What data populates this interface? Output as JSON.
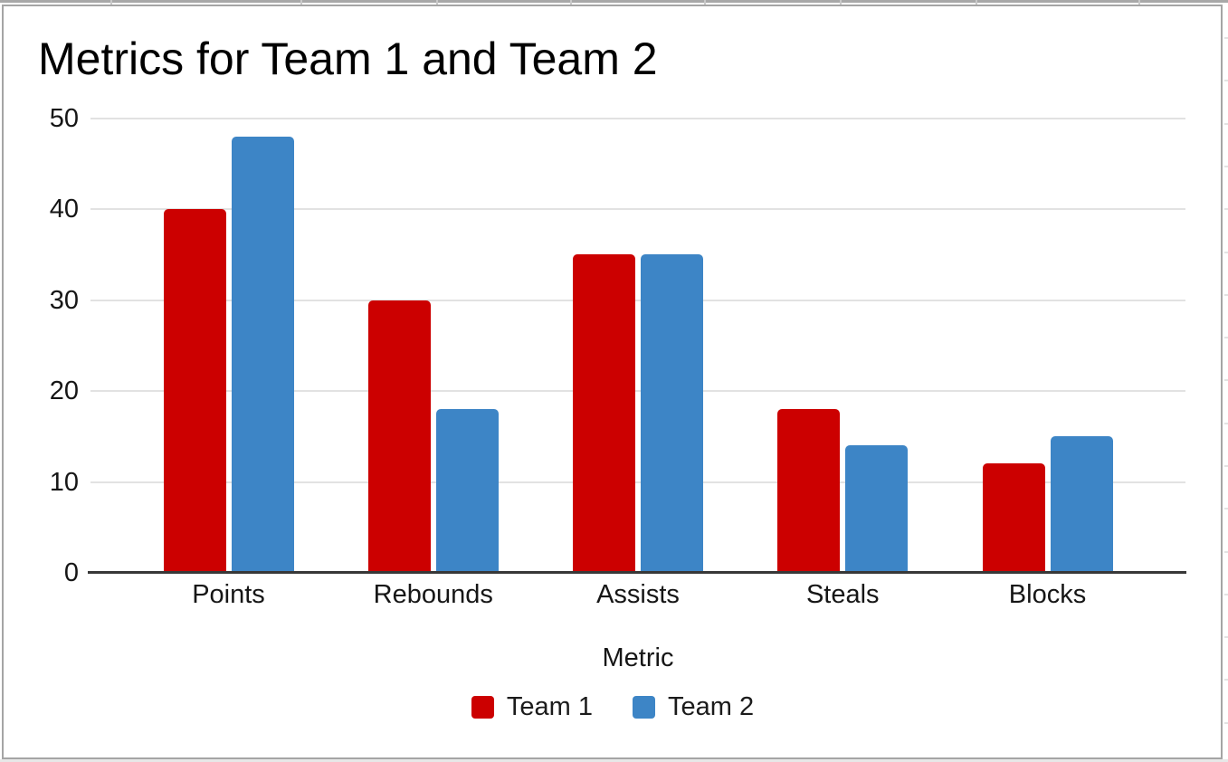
{
  "chart_data": {
    "type": "bar",
    "title": "Metrics for Team 1 and Team 2",
    "xlabel": "Metric",
    "ylabel": "",
    "categories": [
      "Points",
      "Rebounds",
      "Assists",
      "Steals",
      "Blocks"
    ],
    "series": [
      {
        "name": "Team 1",
        "color": "#cc0000",
        "values": [
          40,
          30,
          35,
          18,
          12
        ]
      },
      {
        "name": "Team 2",
        "color": "#3d85c6",
        "values": [
          48,
          18,
          35,
          14,
          15
        ]
      }
    ],
    "ylim": [
      0,
      50
    ],
    "y_ticks": [
      0,
      10,
      20,
      30,
      40,
      50
    ],
    "grid": "horizontal",
    "legend_position": "bottom"
  },
  "colors": {
    "team1": "#cc0000",
    "team2": "#3d85c6",
    "gridline": "#e2e2e2",
    "axis_line": "#383838",
    "tick_text": "#161616",
    "title_text": "#000000",
    "chart_border": "#a5a5a5",
    "sheet_gridline": "#e3e3e3"
  }
}
